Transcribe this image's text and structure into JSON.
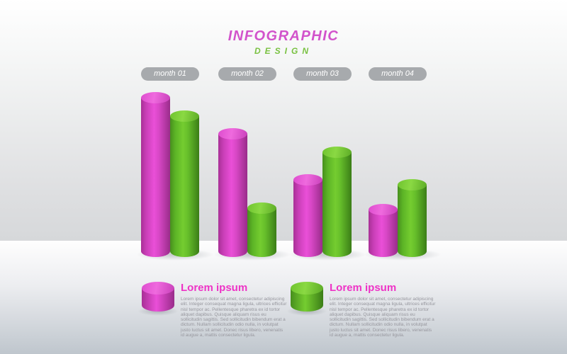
{
  "title": {
    "main": "INFOGRAPHIC",
    "sub": "DESIGN"
  },
  "colors": {
    "title_pink": "#d253cb",
    "title_green": "#79c141",
    "pill_background": "#a7aaad",
    "pill_text": "#ffffff",
    "legend_heading_pink": "#ee33c6",
    "legend_body_text": "#97979e",
    "cylinder_pink": "#e94fd8",
    "cylinder_green": "#75cd30"
  },
  "chart_data": {
    "type": "bar",
    "style": "3d-cylinder-pairs",
    "title": "INFOGRAPHIC DESIGN",
    "categories": [
      "month 01",
      "month 02",
      "month 03",
      "month 04"
    ],
    "series": [
      {
        "name": "Lorem ipsum (pink)",
        "color": "#e94fd8",
        "values": [
          100,
          78,
          50,
          32
        ]
      },
      {
        "name": "Lorem ipsum (green)",
        "color": "#75cd30",
        "values": [
          89,
          33,
          67,
          47
        ]
      }
    ],
    "ylim": [
      0,
      100
    ],
    "grid": false,
    "axes_shown": false,
    "legend_position": "bottom"
  },
  "legend": {
    "items": [
      {
        "icon": "pink-cylinder",
        "heading": "Lorem ipsum",
        "body": "Lorem ipsum dolor sit amet, consectetur adipiscing elit. Integer consequat magna ligula, ultrices efficitur nisl tempor ac. Pellentesque pharetra ex id tortor aliquet dapibus. Quisque aliquam risus eu sollicitudin sagittis. Sed sollicitudin bibendum erat a dictum. Nullam sollicitudin odio nulla, in volutpat justo luctus sit amet. Donec risus libero, venenatis id augue a, mattis consectetur ligula."
      },
      {
        "icon": "green-cylinder",
        "heading": "Lorem ipsum",
        "body": "Lorem ipsum dolor sit amet, consectetur adipiscing elit. Integer consequat magna ligula, ultrices efficitur nisl tempor ac. Pellentesque pharetra ex id tortor aliquet dapibus. Quisque aliquam risus eu sollicitudin sagittis. Sed sollicitudin bibendum erat a dictum. Nullam sollicitudin odio nulla, in volutpat justo luctus sit amet. Donec risus libero, venenatis id augue a, mattis consectetur ligula."
      }
    ]
  }
}
